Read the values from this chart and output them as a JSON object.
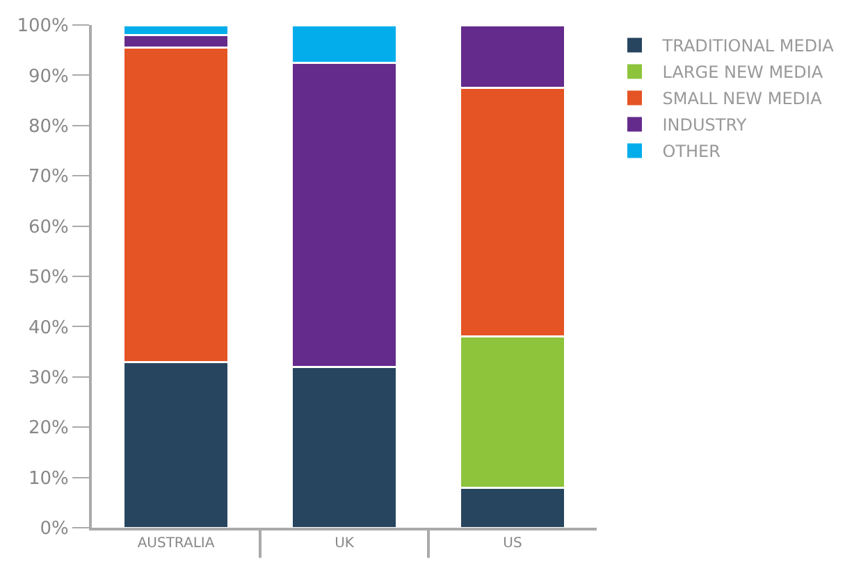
{
  "chart_data": {
    "type": "bar",
    "stacked": true,
    "categories": [
      "AUSTRALIA",
      "UK",
      "US"
    ],
    "series": [
      {
        "name": "TRADITIONAL MEDIA",
        "color": "#27455f",
        "values": [
          33,
          32,
          8
        ]
      },
      {
        "name": "LARGE NEW MEDIA",
        "color": "#8dc43c",
        "values": [
          null,
          null,
          30
        ]
      },
      {
        "name": "SMALL NEW MEDIA",
        "color": "#e55424",
        "values": [
          62.5,
          null,
          49.5
        ]
      },
      {
        "name": "INDUSTRY",
        "color": "#652b8c",
        "values": [
          2.5,
          60.5,
          12.5
        ]
      },
      {
        "name": "OTHER",
        "color": "#03adec",
        "values": [
          2,
          7.5,
          null
        ]
      }
    ],
    "ylim": [
      0,
      100
    ],
    "yticks": [
      {
        "value": 0,
        "label": "0%"
      },
      {
        "value": 10,
        "label": "10%"
      },
      {
        "value": 20,
        "label": "20%"
      },
      {
        "value": 30,
        "label": "30%"
      },
      {
        "value": 40,
        "label": "40%"
      },
      {
        "value": 50,
        "label": "50%"
      },
      {
        "value": 60,
        "label": "60%"
      },
      {
        "value": 70,
        "label": "70%"
      },
      {
        "value": 80,
        "label": "80%"
      },
      {
        "value": 90,
        "label": "90%"
      },
      {
        "value": 100,
        "label": "100%"
      }
    ],
    "legend": "top right"
  }
}
